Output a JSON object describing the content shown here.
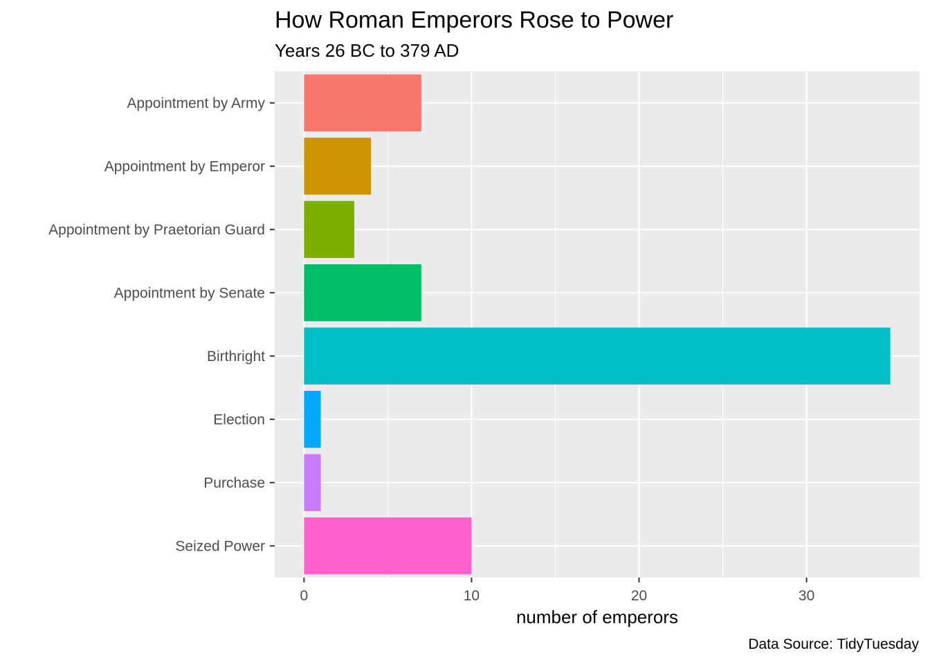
{
  "chart_data": {
    "type": "bar",
    "orientation": "horizontal",
    "title": "How Roman Emperors Rose to Power",
    "subtitle": "Years 26 BC to 379 AD",
    "caption": "Data Source: TidyTuesday",
    "xlabel": "number of emperors",
    "ylabel": "",
    "categories": [
      "Appointment by Army",
      "Appointment by Emperor",
      "Appointment by Praetorian Guard",
      "Appointment by Senate",
      "Birthright",
      "Election",
      "Purchase",
      "Seized Power"
    ],
    "values": [
      7,
      4,
      3,
      7,
      35,
      1,
      1,
      10
    ],
    "colors": [
      "#F8766D",
      "#CD9600",
      "#7CAE00",
      "#00BE67",
      "#00BFC4",
      "#00A9FF",
      "#C77CFF",
      "#FF61CC"
    ],
    "xlim": [
      -1.75,
      36.75
    ],
    "xticks": [
      0,
      10,
      20,
      30
    ],
    "grid": true,
    "panel_background": "#EBEBEB",
    "grid_color": "#FFFFFF",
    "legend": "none"
  }
}
